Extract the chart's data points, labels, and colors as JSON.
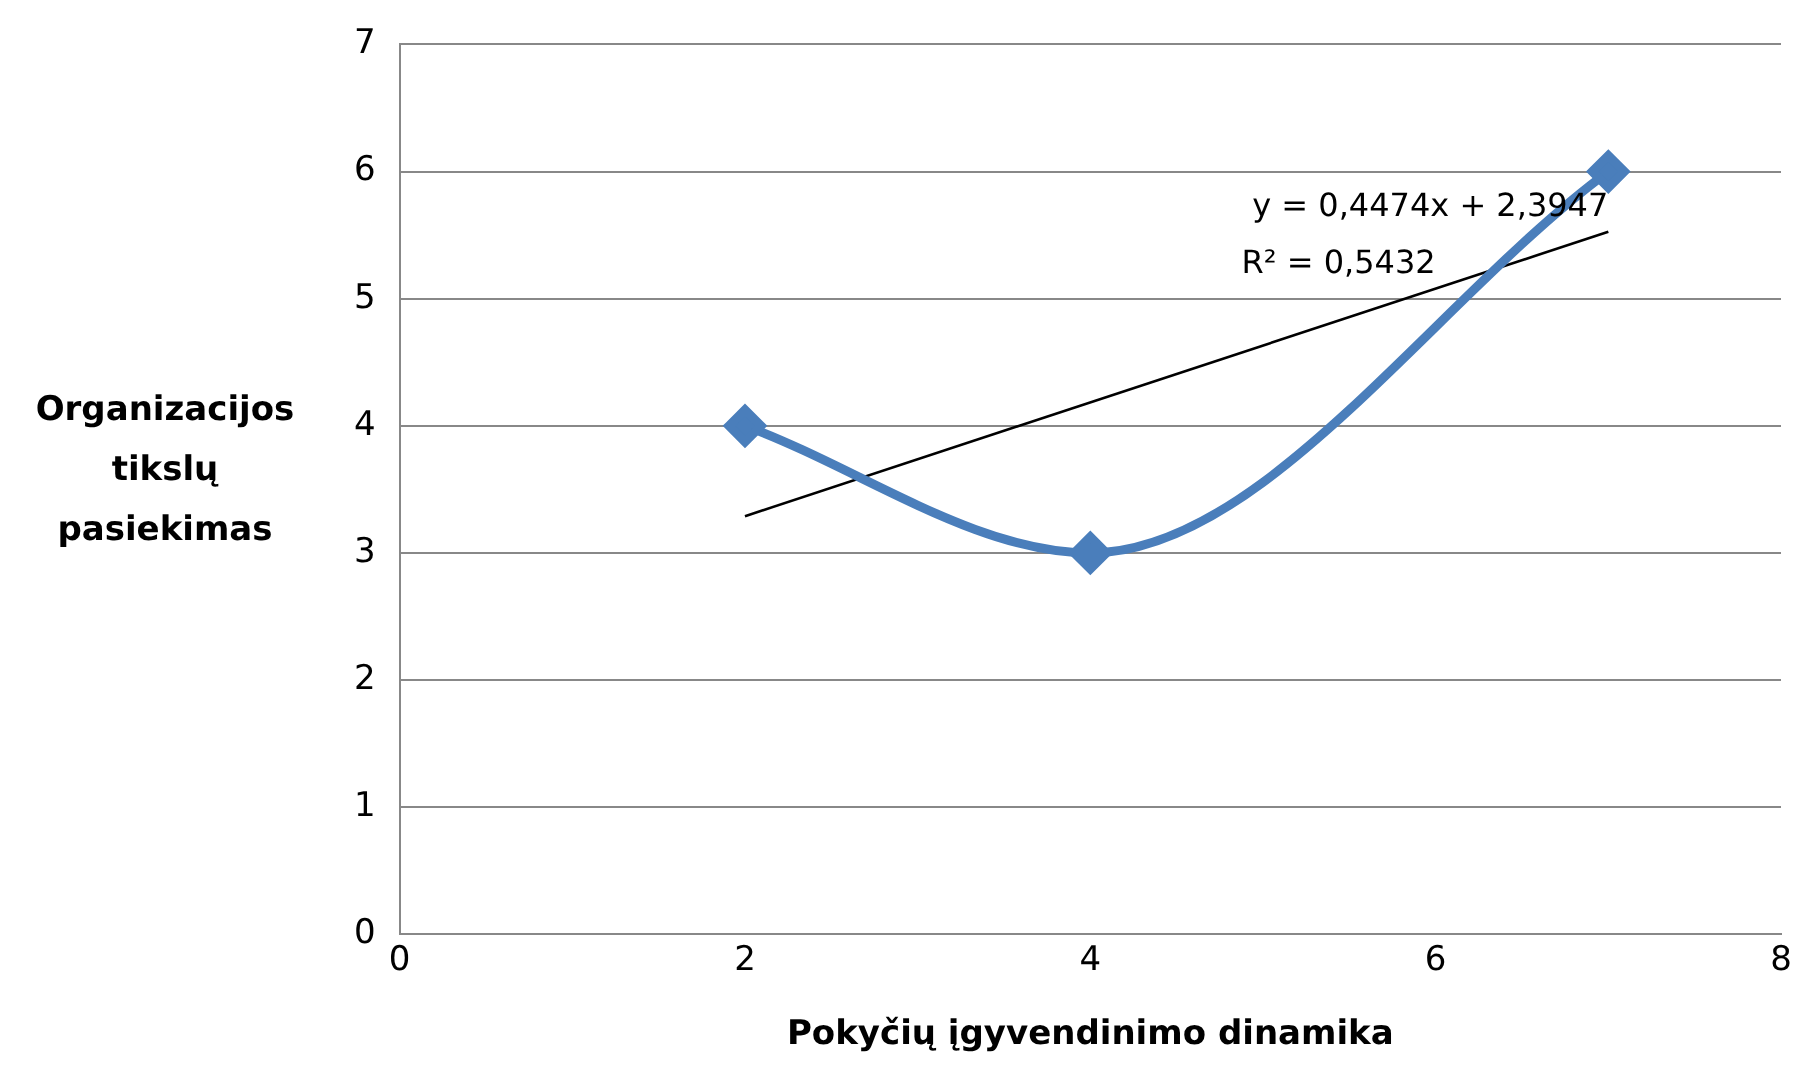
{
  "chart_data": {
    "type": "line",
    "xlabel": "Pokyčių įgyvendinimo dinamika",
    "ylabel": "Organizacijos tikslų pasiekimas",
    "series": [
      {
        "color": "#4a7ebb",
        "x": [
          2,
          4,
          7
        ],
        "values": [
          4,
          3,
          6
        ],
        "marker": "diamond"
      },
      {
        "type": "line",
        "color": "#000000",
        "x": [
          2,
          7
        ],
        "values": [
          3.2895,
          5.5265
        ],
        "marker": "none"
      }
    ],
    "annotations": [
      {
        "text": "y = 0,4474x + 2,3947",
        "x": 7,
        "y": 5.5265
      },
      {
        "text": "R² = 0,5432",
        "x": 6,
        "y": 5.0791
      }
    ],
    "xlim": [
      0,
      8
    ],
    "xticks": [
      0,
      2,
      4,
      6,
      8
    ],
    "ylim": [
      0,
      7
    ],
    "yticks": [
      0,
      1,
      2,
      3,
      4,
      5,
      6,
      7
    ],
    "grid": "y",
    "legend": false
  }
}
